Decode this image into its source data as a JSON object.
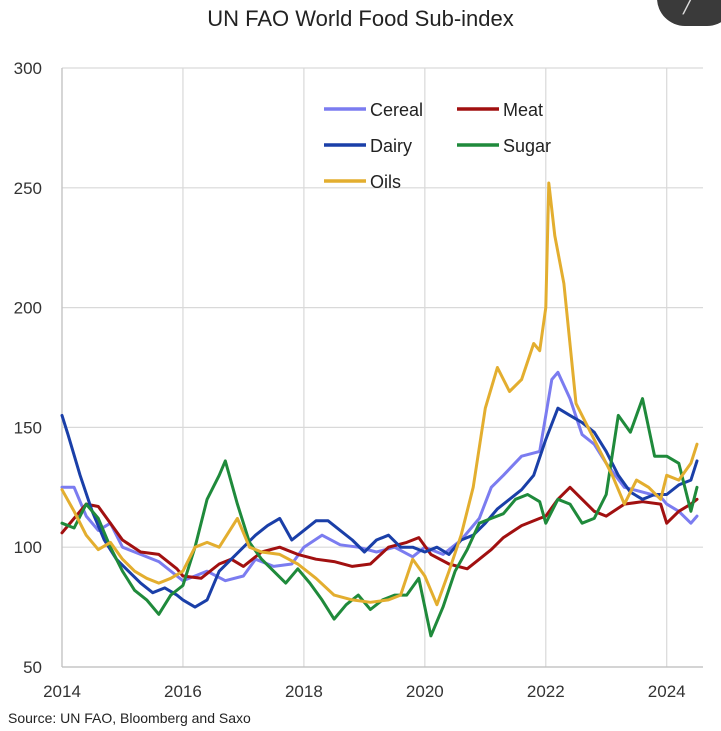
{
  "chart_data": {
    "type": "line",
    "title": "UN FAO World Food Sub-index",
    "source": "Source:  UN FAO, Bloomberg and Saxo",
    "xlabel": "",
    "ylabel": "",
    "xlim": [
      2014,
      2024.6
    ],
    "ylim": [
      50,
      300
    ],
    "xticks": [
      2014,
      2016,
      2018,
      2020,
      2022,
      2024
    ],
    "yticks": [
      50,
      100,
      150,
      200,
      250,
      300
    ],
    "grid": true,
    "legend_position": "top-center",
    "series": [
      {
        "name": "Cereal",
        "color": "#7b7cf0",
        "x": [
          2014.0,
          2014.2,
          2014.4,
          2014.6,
          2014.8,
          2015.0,
          2015.3,
          2015.6,
          2015.9,
          2016.0,
          2016.2,
          2016.4,
          2016.7,
          2017.0,
          2017.2,
          2017.5,
          2017.8,
          2018.0,
          2018.3,
          2018.6,
          2018.9,
          2019.2,
          2019.5,
          2019.8,
          2020.0,
          2020.3,
          2020.6,
          2020.9,
          2021.1,
          2021.3,
          2021.6,
          2021.9,
          2022.0,
          2022.1,
          2022.2,
          2022.4,
          2022.6,
          2022.8,
          2023.0,
          2023.3,
          2023.6,
          2023.9,
          2024.0,
          2024.2,
          2024.4,
          2024.5
        ],
        "y": [
          125,
          125,
          113,
          107,
          110,
          100,
          97,
          94,
          88,
          86,
          88,
          90,
          86,
          88,
          95,
          92,
          93,
          100,
          105,
          101,
          100,
          98,
          100,
          96,
          100,
          97,
          103,
          112,
          125,
          130,
          138,
          140,
          155,
          170,
          173,
          162,
          147,
          143,
          135,
          125,
          123,
          121,
          118,
          115,
          110,
          113
        ]
      },
      {
        "name": "Meat",
        "color": "#a11010",
        "x": [
          2014.0,
          2014.2,
          2014.4,
          2014.6,
          2014.8,
          2015.0,
          2015.3,
          2015.6,
          2015.9,
          2016.0,
          2016.3,
          2016.6,
          2016.8,
          2017.0,
          2017.3,
          2017.6,
          2017.9,
          2018.2,
          2018.5,
          2018.8,
          2019.1,
          2019.4,
          2019.7,
          2019.9,
          2020.1,
          2020.4,
          2020.7,
          2020.9,
          2021.1,
          2021.3,
          2021.6,
          2021.9,
          2022.0,
          2022.2,
          2022.4,
          2022.6,
          2022.8,
          2023.0,
          2023.3,
          2023.6,
          2023.9,
          2024.0,
          2024.2,
          2024.4,
          2024.5
        ],
        "y": [
          106,
          112,
          118,
          117,
          110,
          103,
          98,
          97,
          91,
          88,
          87,
          93,
          95,
          92,
          98,
          100,
          97,
          95,
          94,
          92,
          93,
          100,
          102,
          104,
          97,
          93,
          91,
          95,
          99,
          104,
          109,
          112,
          113,
          120,
          125,
          120,
          115,
          113,
          118,
          119,
          118,
          110,
          115,
          118,
          120
        ]
      },
      {
        "name": "Dairy",
        "color": "#1a3fa8",
        "x": [
          2014.0,
          2014.1,
          2014.3,
          2014.5,
          2014.7,
          2014.9,
          2015.1,
          2015.3,
          2015.5,
          2015.7,
          2015.9,
          2016.0,
          2016.2,
          2016.4,
          2016.6,
          2016.8,
          2017.0,
          2017.2,
          2017.4,
          2017.6,
          2017.8,
          2018.0,
          2018.2,
          2018.4,
          2018.6,
          2018.8,
          2019.0,
          2019.2,
          2019.4,
          2019.6,
          2019.8,
          2020.0,
          2020.2,
          2020.4,
          2020.6,
          2020.8,
          2021.0,
          2021.2,
          2021.4,
          2021.6,
          2021.8,
          2022.0,
          2022.2,
          2022.4,
          2022.6,
          2022.8,
          2023.0,
          2023.2,
          2023.4,
          2023.6,
          2023.8,
          2024.0,
          2024.2,
          2024.4,
          2024.5
        ],
        "y": [
          155,
          147,
          130,
          115,
          103,
          95,
          90,
          85,
          81,
          83,
          80,
          78,
          75,
          78,
          90,
          95,
          100,
          105,
          109,
          112,
          103,
          107,
          111,
          111,
          107,
          103,
          98,
          103,
          105,
          100,
          100,
          98,
          100,
          97,
          103,
          105,
          110,
          116,
          120,
          124,
          130,
          145,
          158,
          155,
          152,
          148,
          140,
          130,
          123,
          120,
          122,
          122,
          126,
          128,
          136
        ]
      },
      {
        "name": "Sugar",
        "color": "#1f8a3b",
        "x": [
          2014.0,
          2014.2,
          2014.4,
          2014.6,
          2014.8,
          2015.0,
          2015.2,
          2015.4,
          2015.6,
          2015.8,
          2016.0,
          2016.2,
          2016.4,
          2016.6,
          2016.7,
          2016.9,
          2017.1,
          2017.3,
          2017.5,
          2017.7,
          2017.9,
          2018.1,
          2018.3,
          2018.5,
          2018.7,
          2018.9,
          2019.1,
          2019.3,
          2019.5,
          2019.7,
          2019.9,
          2020.1,
          2020.3,
          2020.5,
          2020.7,
          2020.9,
          2021.1,
          2021.3,
          2021.5,
          2021.7,
          2021.9,
          2022.0,
          2022.2,
          2022.4,
          2022.6,
          2022.8,
          2023.0,
          2023.2,
          2023.4,
          2023.6,
          2023.8,
          2024.0,
          2024.2,
          2024.4,
          2024.5
        ],
        "y": [
          110,
          108,
          118,
          112,
          100,
          90,
          82,
          78,
          72,
          80,
          84,
          100,
          120,
          130,
          136,
          118,
          102,
          95,
          90,
          85,
          91,
          85,
          78,
          70,
          76,
          80,
          74,
          78,
          80,
          80,
          87,
          63,
          75,
          90,
          99,
          110,
          112,
          114,
          120,
          122,
          119,
          110,
          120,
          118,
          110,
          112,
          122,
          155,
          148,
          162,
          138,
          138,
          135,
          115,
          125
        ]
      },
      {
        "name": "Oils",
        "color": "#e3ae2f",
        "x": [
          2014.0,
          2014.2,
          2014.4,
          2014.6,
          2014.8,
          2015.0,
          2015.2,
          2015.4,
          2015.6,
          2015.8,
          2016.0,
          2016.2,
          2016.4,
          2016.6,
          2016.9,
          2017.1,
          2017.3,
          2017.6,
          2017.9,
          2018.2,
          2018.5,
          2018.8,
          2019.1,
          2019.4,
          2019.6,
          2019.8,
          2020.0,
          2020.2,
          2020.4,
          2020.6,
          2020.8,
          2021.0,
          2021.2,
          2021.4,
          2021.6,
          2021.8,
          2021.9,
          2022.0,
          2022.05,
          2022.15,
          2022.3,
          2022.5,
          2022.7,
          2022.9,
          2023.1,
          2023.3,
          2023.5,
          2023.7,
          2023.9,
          2024.0,
          2024.2,
          2024.4,
          2024.5
        ],
        "y": [
          124,
          115,
          105,
          99,
          102,
          95,
          90,
          87,
          85,
          87,
          90,
          100,
          102,
          100,
          112,
          100,
          98,
          97,
          93,
          87,
          80,
          78,
          77,
          78,
          80,
          95,
          88,
          76,
          90,
          105,
          125,
          158,
          175,
          165,
          170,
          185,
          182,
          200,
          252,
          230,
          210,
          160,
          150,
          140,
          130,
          118,
          128,
          125,
          120,
          130,
          128,
          135,
          143
        ]
      }
    ]
  }
}
